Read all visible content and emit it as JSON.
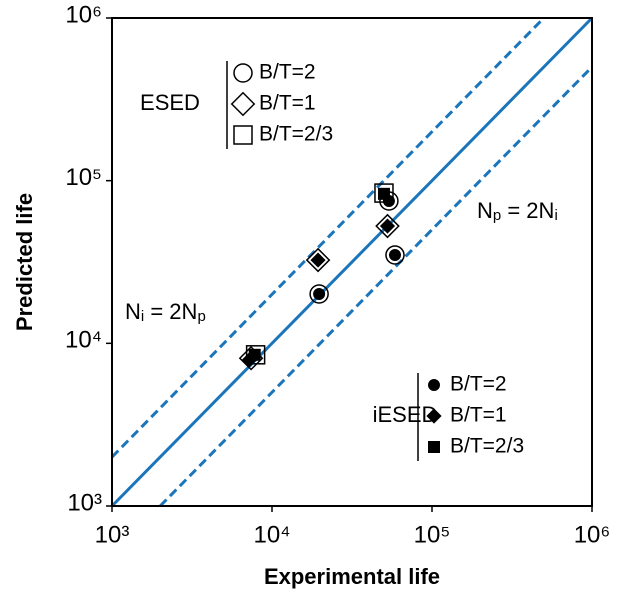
{
  "chart_data": {
    "type": "scatter",
    "xlabel": "Experimental life",
    "ylabel": "Predicted life",
    "xscale": "log",
    "yscale": "log",
    "xlim": [
      1000,
      1000000
    ],
    "ylim": [
      1000,
      1000000
    ],
    "xticks": [
      {
        "value": 1000,
        "label": "10³"
      },
      {
        "value": 10000,
        "label": "10⁴"
      },
      {
        "value": 100000,
        "label": "10⁵"
      },
      {
        "value": 1000000,
        "label": "10⁶"
      }
    ],
    "yticks": [
      {
        "value": 1000,
        "label": "10³"
      },
      {
        "value": 10000,
        "label": "10⁴"
      },
      {
        "value": 100000,
        "label": "10⁵"
      },
      {
        "value": 1000000,
        "label": "10⁶"
      }
    ],
    "line_color": "#1b75bb",
    "reference_lines": [
      {
        "style": "solid",
        "x": [
          1000,
          1000000
        ],
        "y": [
          1000,
          1000000
        ]
      },
      {
        "style": "dashed",
        "x": [
          1000,
          500000
        ],
        "y": [
          2000,
          1000000
        ]
      },
      {
        "style": "dashed",
        "x": [
          2000,
          1000000
        ],
        "y": [
          1000,
          500000
        ]
      }
    ],
    "annotations": [
      {
        "parts": [
          {
            "text": "N"
          },
          {
            "text": "p",
            "sub": true
          },
          {
            "text": " = 2N"
          },
          {
            "text": "i",
            "sub": true
          }
        ]
      },
      {
        "parts": [
          {
            "text": "N"
          },
          {
            "text": "i",
            "sub": true
          },
          {
            "text": " = 2N"
          },
          {
            "text": "p",
            "sub": true
          }
        ]
      }
    ],
    "groups": [
      {
        "name": "ESED",
        "filled": false,
        "legend": "top-left",
        "series": [
          {
            "name": "B/T=2",
            "marker": "circle",
            "x": [
              19700,
              53800,
              58700
            ],
            "y": [
              20100,
              75000,
              34900
            ]
          },
          {
            "name": "B/T=1",
            "marker": "diamond",
            "x": [
              19400,
              52700,
              7400
            ],
            "y": [
              32500,
              52600,
              8100
            ]
          },
          {
            "name": "B/T=2/3",
            "marker": "square",
            "x": [
              7900,
              50100
            ],
            "y": [
              8500,
              83900
            ]
          }
        ]
      },
      {
        "name": "iESED",
        "filled": true,
        "legend": "bottom-right",
        "series": [
          {
            "name": "B/T=2",
            "marker": "circle",
            "x": [
              19700,
              53800,
              58700
            ],
            "y": [
              20100,
              75000,
              34900
            ]
          },
          {
            "name": "B/T=1",
            "marker": "diamond",
            "x": [
              19400,
              52700,
              7200
            ],
            "y": [
              32500,
              52600,
              7900
            ]
          },
          {
            "name": "B/T=2/3",
            "marker": "square",
            "x": [
              7800,
              50100
            ],
            "y": [
              8500,
              83000
            ]
          }
        ]
      }
    ]
  }
}
